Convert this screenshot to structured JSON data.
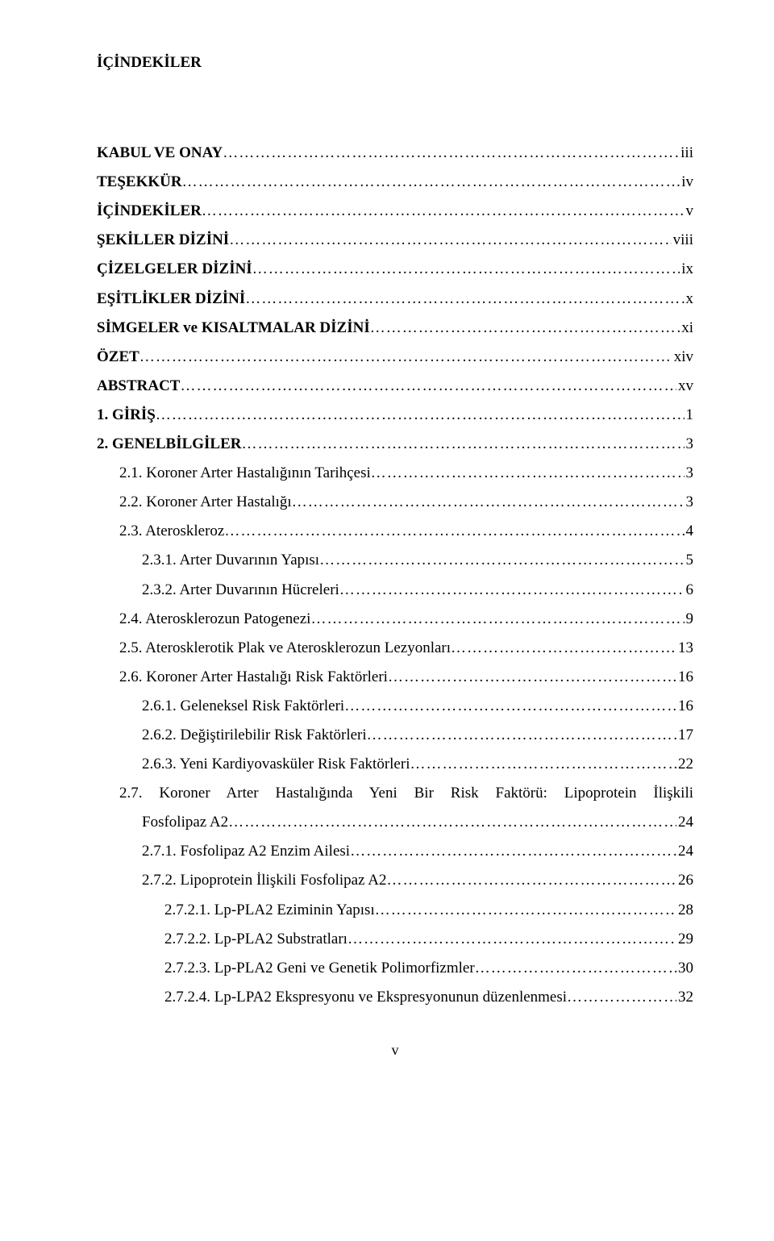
{
  "title": "İÇİNDEKİLER",
  "footer_page": "v",
  "toc": [
    {
      "label": "KABUL VE ONAY",
      "page": "iii",
      "indent": 0,
      "bold": true,
      "prespace": false
    },
    {
      "label": "TEŞEKKÜR",
      "page": "iv",
      "indent": 0,
      "bold": true,
      "prespace": false
    },
    {
      "label": "İÇİNDEKİLER",
      "page": "v",
      "indent": 0,
      "bold": true,
      "prespace": false
    },
    {
      "label": "ŞEKİLLER DİZİNİ",
      "page": "viii",
      "indent": 0,
      "bold": true,
      "prespace": false
    },
    {
      "label": "ÇİZELGELER DİZİNİ",
      "page": " ix",
      "indent": 0,
      "bold": true,
      "prespace": false
    },
    {
      "label": "EŞİTLİKLER DİZİNİ",
      "page": " x",
      "indent": 0,
      "bold": true,
      "prespace": false
    },
    {
      "label": "SİMGELER ve KISALTMALAR DİZİNİ",
      "page": "xi",
      "indent": 0,
      "bold": true,
      "prespace": false
    },
    {
      "label": "ÖZET",
      "page": "xiv",
      "indent": 0,
      "bold": true,
      "prespace": false
    },
    {
      "label": "ABSTRACT",
      "page": "xv",
      "indent": 0,
      "bold": true,
      "prespace": false
    },
    {
      "label": "1.  GİRİŞ",
      "page": "1",
      "indent": 0,
      "bold": true,
      "prespace": false
    },
    {
      "label": "2.  GENELBİLGİLER",
      "page": " 3",
      "indent": 0,
      "bold": true,
      "prespace": false
    },
    {
      "label": "2.1.  Koroner Arter Hastalığının Tarihçesi",
      "page": "3",
      "indent": 1,
      "bold": false,
      "prespace": false
    },
    {
      "label": "2.2.  Koroner Arter Hastalığı",
      "page": "3",
      "indent": 1,
      "bold": false,
      "prespace": false
    },
    {
      "label": "2.3.  Ateroskleroz",
      "page": "4",
      "indent": 1,
      "bold": false,
      "prespace": false
    },
    {
      "label": "2.3.1.  Arter Duvarının Yapısı",
      "page": "5",
      "indent": 2,
      "bold": false,
      "prespace": false
    },
    {
      "label": "2.3.2.  Arter Duvarının Hücreleri",
      "page": "6",
      "indent": 2,
      "bold": false,
      "prespace": false
    },
    {
      "label": "2.4.  Aterosklerozun Patogenezi",
      "page": "9",
      "indent": 1,
      "bold": false,
      "prespace": false
    },
    {
      "label": "2.5.  Aterosklerotik Plak ve Aterosklerozun Lezyonları",
      "page": "13",
      "indent": 1,
      "bold": false,
      "prespace": false
    },
    {
      "label": "2.6.  Koroner Arter Hastalığı Risk Faktörleri",
      "page": "16",
      "indent": 1,
      "bold": false,
      "prespace": false
    },
    {
      "label": "2.6.1.  Geleneksel Risk  Faktörleri",
      "page": "16",
      "indent": 2,
      "bold": false,
      "prespace": false
    },
    {
      "label": "2.6.2.  Değiştirilebilir Risk Faktörleri",
      "page": "17",
      "indent": 2,
      "bold": false,
      "prespace": false
    },
    {
      "label": "2.6.3.  Yeni Kardiyovasküler Risk Faktörleri",
      "page": "22",
      "indent": 2,
      "bold": false,
      "prespace": false
    },
    {
      "label": "2.7. Koroner Arter Hastalığında Yeni Bir Risk Faktörü: Lipoprotein İlişkili Fosfolipaz A2",
      "page": "24",
      "indent": 1,
      "bold": false,
      "prespace": false,
      "wrap": true
    },
    {
      "label": "2.7.1.  Fosfolipaz A2 Enzim Ailesi",
      "page": "24",
      "indent": 2,
      "bold": false,
      "prespace": false
    },
    {
      "label": "2.7.2.  Lipoprotein İlişkili Fosfolipaz A2",
      "page": "26",
      "indent": 2,
      "bold": false,
      "prespace": false
    },
    {
      "label": "2.7.2.1.      Lp-PLA2 Eziminin Yapısı",
      "page": "28",
      "indent": 3,
      "bold": false,
      "prespace": false
    },
    {
      "label": "2.7.2.2.      Lp-PLA2 Substratları",
      "page": "29",
      "indent": 3,
      "bold": false,
      "prespace": false
    },
    {
      "label": "2.7.2.3.      Lp-PLA2 Geni ve Genetik Polimorfizmler",
      "page": "30",
      "indent": 3,
      "bold": false,
      "prespace": false
    },
    {
      "label": "2.7.2.4.      Lp-LPA2 Ekspresyonu ve Ekspresyonunun düzenlenmesi",
      "page": "32",
      "indent": 3,
      "bold": false,
      "prespace": false
    }
  ]
}
